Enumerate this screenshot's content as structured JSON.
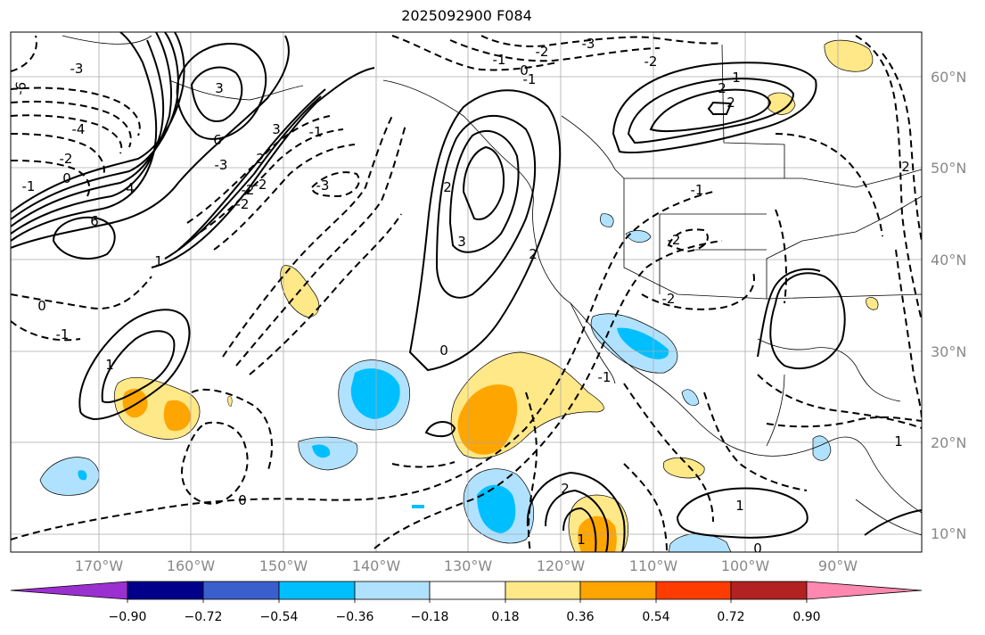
{
  "title": "2025092900 F084",
  "lat_labels": [
    "60°N",
    "50°N",
    "40°N",
    "30°N",
    "20°N",
    "10°N"
  ],
  "lon_labels": [
    "170°W",
    "160°W",
    "150°W",
    "140°W",
    "130°W",
    "120°W",
    "110°W",
    "100°W",
    "90°W"
  ],
  "colorbar": {
    "ticks": [
      "−0.90",
      "−0.72",
      "−0.54",
      "−0.36",
      "−0.18",
      "0.18",
      "0.36",
      "0.54",
      "0.72",
      "0.90"
    ],
    "colors": [
      "#9b30d0",
      "#00008b",
      "#3a5fcd",
      "#00bfff",
      "#b0e2ff",
      "#ffffff",
      "#ffe888",
      "#ffa500",
      "#ff3c00",
      "#b22222",
      "#ff88b0"
    ]
  },
  "contour_labels": [
    "-6",
    "-3",
    "-4",
    "-2",
    "0",
    "-1",
    "-1",
    "6",
    "4",
    "6",
    "3",
    "-3",
    "3",
    "2",
    "-2",
    "-2",
    "-3",
    "3",
    "2",
    "0",
    "1",
    "0",
    "-3",
    "-2",
    "-2",
    "-1",
    "0",
    "-1",
    "2",
    "1",
    "2",
    "2",
    "-2",
    "-1",
    "-2",
    "1",
    "0",
    "2",
    "1",
    "1",
    "0",
    "-1",
    "-2",
    "-1",
    "2",
    "1"
  ]
}
